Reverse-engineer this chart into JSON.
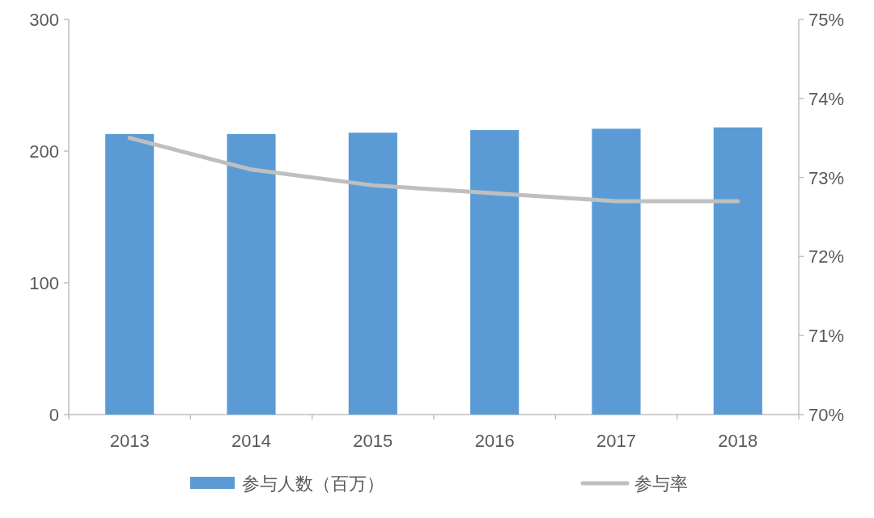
{
  "chart_data": {
    "type": "bar",
    "categories": [
      "2013",
      "2014",
      "2015",
      "2016",
      "2017",
      "2018"
    ],
    "series": [
      {
        "name": "参与人数（百万）",
        "color": "#5b9bd5",
        "values": [
          213,
          213,
          214,
          216,
          217,
          218
        ]
      },
      {
        "name": "参与率",
        "type": "line",
        "axis": "y2",
        "color": "#bfbfbf",
        "values": [
          73.5,
          73.1,
          72.9,
          72.8,
          72.7,
          72.7
        ]
      }
    ],
    "ylim": [
      0,
      300
    ],
    "yticks": [
      0,
      100,
      200,
      300
    ],
    "y2lim": [
      70,
      75
    ],
    "y2ticks": [
      {
        "value": 70,
        "label": "70%"
      },
      {
        "value": 71,
        "label": "71%"
      },
      {
        "value": 72,
        "label": "72%"
      },
      {
        "value": 73,
        "label": "73%"
      },
      {
        "value": 74,
        "label": "74%"
      },
      {
        "value": 75,
        "label": "75%"
      }
    ],
    "grid": false,
    "legend": "bottom",
    "marker": "none",
    "line_style": "solid"
  }
}
